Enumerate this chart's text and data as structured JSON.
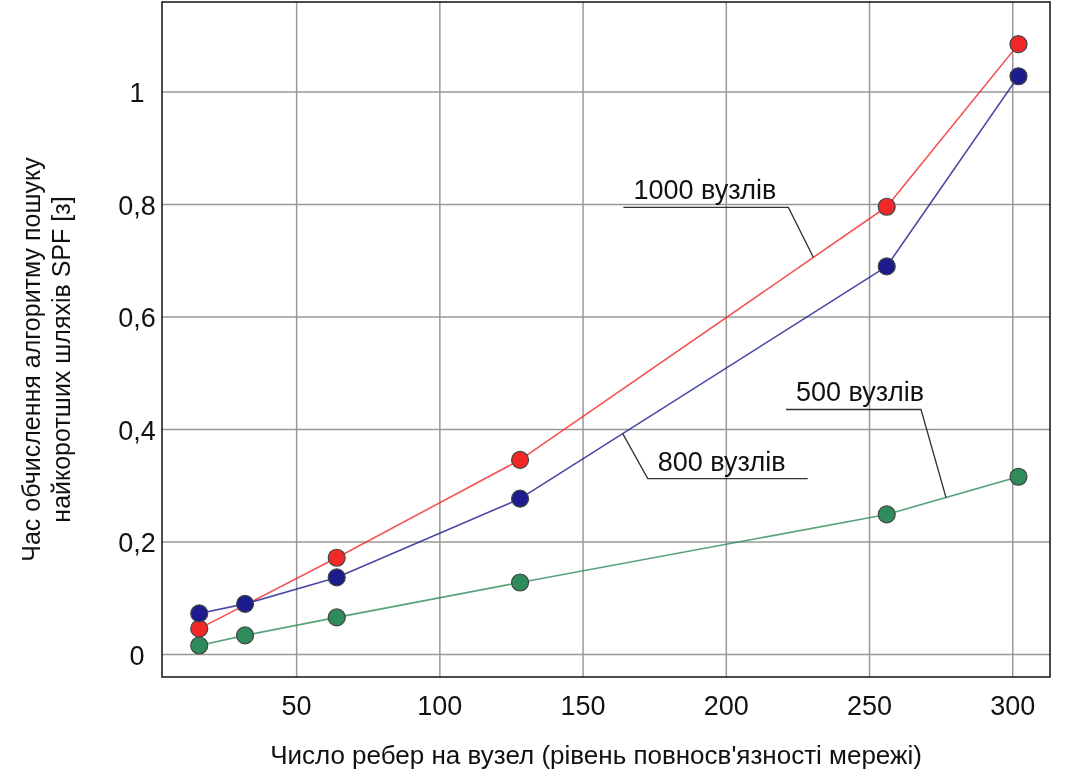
{
  "chart_data": {
    "type": "line",
    "xlabel": "Число ребер на вузел (рівень повносв'язності мережі)",
    "ylabel": "Час обчислення алгоритму пошуку найкоротших шляхів SPF [з]",
    "xlim": [
      3,
      313
    ],
    "ylim": [
      -0.04,
      1.16
    ],
    "xticks": [
      50,
      100,
      150,
      200,
      250,
      300
    ],
    "yticks": [
      0,
      {
        "value": 0.2,
        "label": "0,2"
      },
      {
        "value": 0.4,
        "label": "0,4"
      },
      {
        "value": 0.6,
        "label": "0,6"
      },
      {
        "value": 0.8,
        "label": "0,8"
      },
      1
    ],
    "grid": true,
    "legend": false,
    "marker": "circle",
    "line_style": "solid",
    "series": [
      {
        "name": "1000 вузлів",
        "color": "#f02828",
        "x": [
          16,
          64,
          128,
          256,
          302
        ],
        "values": [
          0.046,
          0.172,
          0.346,
          0.796,
          1.085
        ]
      },
      {
        "name": "800 вузлів",
        "color": "#1c1c8c",
        "x": [
          16,
          32,
          64,
          128,
          256,
          302
        ],
        "values": [
          0.073,
          0.09,
          0.137,
          0.277,
          0.69,
          1.028
        ]
      },
      {
        "name": "500 вузлів",
        "color": "#2e8b5a",
        "x": [
          16,
          32,
          64,
          128,
          256,
          302
        ],
        "values": [
          0.016,
          0.034,
          0.066,
          0.128,
          0.249,
          0.316
        ]
      }
    ]
  }
}
